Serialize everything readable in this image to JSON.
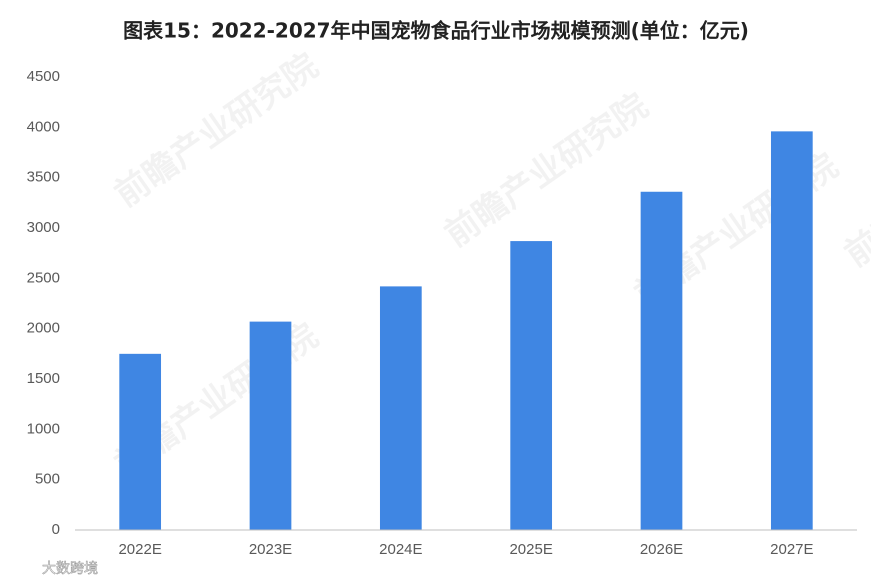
{
  "chart_data": {
    "type": "bar",
    "title": "图表15：2022-2027年中国宠物食品行业市场规模预测(单位：亿元)",
    "categories": [
      "2022E",
      "2023E",
      "2024E",
      "2025E",
      "2026E",
      "2027E"
    ],
    "values": [
      1750,
      2070,
      2420,
      2870,
      3360,
      3960
    ],
    "color": "#3f86e3",
    "ylim": [
      0,
      4500
    ],
    "yticks": [
      0,
      500,
      1000,
      1500,
      2000,
      2500,
      3000,
      3500,
      4000,
      4500
    ],
    "grid": false,
    "watermark": "前瞻产业研究院",
    "credit": "大数跨境"
  }
}
